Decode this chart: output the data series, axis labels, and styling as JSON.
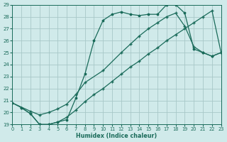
{
  "xlabel": "Humidex (Indice chaleur)",
  "xlim": [
    0,
    23
  ],
  "ylim": [
    19,
    29
  ],
  "xticks": [
    0,
    1,
    2,
    3,
    4,
    5,
    6,
    7,
    8,
    9,
    10,
    11,
    12,
    13,
    14,
    15,
    16,
    17,
    18,
    19,
    20,
    21,
    22,
    23
  ],
  "yticks": [
    19,
    20,
    21,
    22,
    23,
    24,
    25,
    26,
    27,
    28,
    29
  ],
  "bg_color": "#d0eaea",
  "grid_color": "#a8c8c8",
  "line_color": "#1a6b5a",
  "curve1": {
    "x": [
      0,
      1,
      2,
      3,
      4,
      5,
      6,
      7,
      8,
      9,
      10,
      11,
      12,
      13,
      14,
      15,
      16,
      17,
      18,
      19,
      20,
      21,
      22,
      23
    ],
    "y": [
      20.8,
      20.4,
      19.9,
      19.0,
      19.0,
      19.2,
      19.4,
      21.2,
      23.2,
      26.0,
      27.7,
      28.2,
      28.4,
      28.2,
      28.1,
      28.2,
      28.2,
      29.0,
      29.0,
      28.3,
      25.3,
      25.0,
      24.7,
      25.0
    ]
  },
  "curve2": {
    "x": [
      0,
      2,
      3,
      4,
      5,
      6,
      7,
      8,
      10,
      12,
      13,
      14,
      15,
      16,
      17,
      18,
      19,
      20,
      21,
      22,
      23
    ],
    "y": [
      20.8,
      20.1,
      19.8,
      20.0,
      20.3,
      20.7,
      21.5,
      22.5,
      23.5,
      25.0,
      25.7,
      26.4,
      27.0,
      27.5,
      28.0,
      28.3,
      27.2,
      25.5,
      25.0,
      24.7,
      25.0
    ]
  },
  "curve3": {
    "x": [
      1,
      2,
      3,
      4,
      5,
      6,
      7,
      8,
      9,
      10,
      11,
      12,
      13,
      14,
      15,
      16,
      17,
      18,
      19,
      20,
      21,
      22,
      23
    ],
    "y": [
      20.4,
      19.9,
      19.0,
      19.0,
      19.2,
      19.6,
      20.2,
      20.9,
      21.5,
      22.0,
      22.6,
      23.2,
      23.8,
      24.3,
      24.9,
      25.4,
      26.0,
      26.5,
      27.0,
      27.5,
      28.0,
      28.5,
      25.0
    ]
  }
}
